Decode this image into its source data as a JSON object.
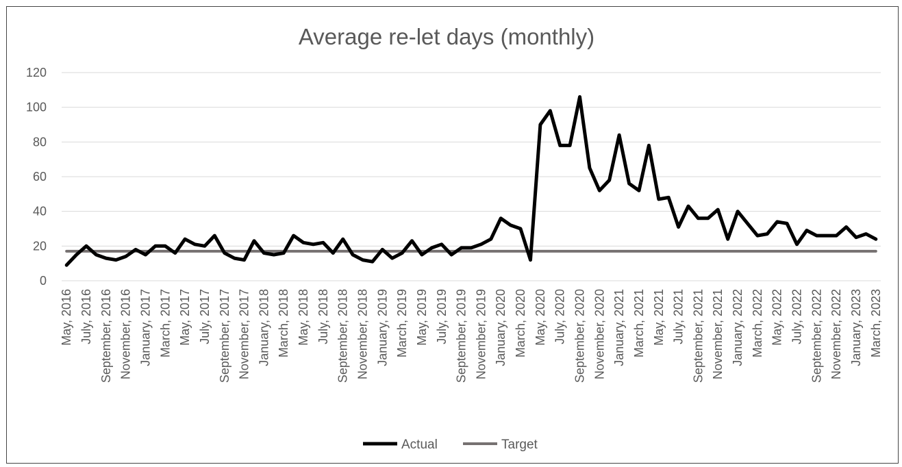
{
  "chart_data": {
    "type": "line",
    "title": "Average re-let days (monthly)",
    "xlabel": "",
    "ylabel": "",
    "ylim": [
      0,
      120
    ],
    "yticks": [
      0,
      20,
      40,
      60,
      80,
      100,
      120
    ],
    "grid": true,
    "legend_position": "bottom",
    "x": [
      "May, 2016",
      "June, 2016",
      "July, 2016",
      "August, 2016",
      "September, 2016",
      "October, 2016",
      "November, 2016",
      "December, 2016",
      "January, 2017",
      "February, 2017",
      "March, 2017",
      "April, 2017",
      "May, 2017",
      "June, 2017",
      "July, 2017",
      "August, 2017",
      "September, 2017",
      "October, 2017",
      "November, 2017",
      "December, 2017",
      "January, 2018",
      "February, 2018",
      "March, 2018",
      "April, 2018",
      "May, 2018",
      "June, 2018",
      "July, 2018",
      "August, 2018",
      "September, 2018",
      "October, 2018",
      "November, 2018",
      "December, 2018",
      "January, 2019",
      "February, 2019",
      "March, 2019",
      "April, 2019",
      "May, 2019",
      "June, 2019",
      "July, 2019",
      "August, 2019",
      "September, 2019",
      "October, 2019",
      "November, 2019",
      "December, 2019",
      "January, 2020",
      "February, 2020",
      "March, 2020",
      "April, 2020",
      "May, 2020",
      "June, 2020",
      "July, 2020",
      "August, 2020",
      "September, 2020",
      "October, 2020",
      "November, 2020",
      "December, 2020",
      "January, 2021",
      "February, 2021",
      "March, 2021",
      "April, 2021",
      "May, 2021",
      "June, 2021",
      "July, 2021",
      "August, 2021",
      "September, 2021",
      "October, 2021",
      "November, 2021",
      "December, 2021",
      "January, 2022",
      "February, 2022",
      "March, 2022",
      "April, 2022",
      "May, 2022",
      "June, 2022",
      "July, 2022",
      "August, 2022",
      "September, 2022",
      "October, 2022",
      "November, 2022",
      "December, 2022",
      "January, 2023",
      "February, 2023",
      "March, 2023"
    ],
    "tick_labels": [
      "May, 2016",
      "July, 2016",
      "September, 2016",
      "November, 2016",
      "January, 2017",
      "March, 2017",
      "May, 2017",
      "July, 2017",
      "September, 2017",
      "November, 2017",
      "January, 2018",
      "March, 2018",
      "May, 2018",
      "July, 2018",
      "September, 2018",
      "November, 2018",
      "January, 2019",
      "March, 2019",
      "May, 2019",
      "July, 2019",
      "September, 2019",
      "November, 2019",
      "January, 2020",
      "March, 2020",
      "May, 2020",
      "July, 2020",
      "September, 2020",
      "November, 2020",
      "January, 2021",
      "March, 2021",
      "May, 2021",
      "July, 2021",
      "September, 2021",
      "November, 2021",
      "January, 2022",
      "March, 2022",
      "May, 2022",
      "July, 2022",
      "September, 2022",
      "November, 2022",
      "January, 2023",
      "March, 2023"
    ],
    "series": [
      {
        "name": "Actual",
        "color": "#000000",
        "values": [
          9,
          15,
          20,
          15,
          13,
          12,
          14,
          18,
          15,
          20,
          20,
          16,
          24,
          21,
          20,
          26,
          16,
          13,
          12,
          23,
          16,
          15,
          16,
          26,
          22,
          21,
          22,
          16,
          24,
          15,
          12,
          11,
          18,
          13,
          16,
          23,
          15,
          19,
          21,
          15,
          19,
          19,
          21,
          24,
          36,
          32,
          30,
          12,
          90,
          98,
          78,
          78,
          106,
          65,
          52,
          58,
          84,
          56,
          52,
          78,
          47,
          48,
          31,
          43,
          36,
          36,
          41,
          24,
          40,
          33,
          26,
          27,
          34,
          33,
          21,
          29,
          26,
          26,
          26,
          31,
          25,
          27,
          24
        ]
      },
      {
        "name": "Target",
        "color": "#767171",
        "values": [
          17,
          17,
          17,
          17,
          17,
          17,
          17,
          17,
          17,
          17,
          17,
          17,
          17,
          17,
          17,
          17,
          17,
          17,
          17,
          17,
          17,
          17,
          17,
          17,
          17,
          17,
          17,
          17,
          17,
          17,
          17,
          17,
          17,
          17,
          17,
          17,
          17,
          17,
          17,
          17,
          17,
          17,
          17,
          17,
          17,
          17,
          17,
          17,
          17,
          17,
          17,
          17,
          17,
          17,
          17,
          17,
          17,
          17,
          17,
          17,
          17,
          17,
          17,
          17,
          17,
          17,
          17,
          17,
          17,
          17,
          17,
          17,
          17,
          17,
          17,
          17,
          17,
          17,
          17,
          17,
          17,
          17,
          17
        ]
      }
    ]
  }
}
